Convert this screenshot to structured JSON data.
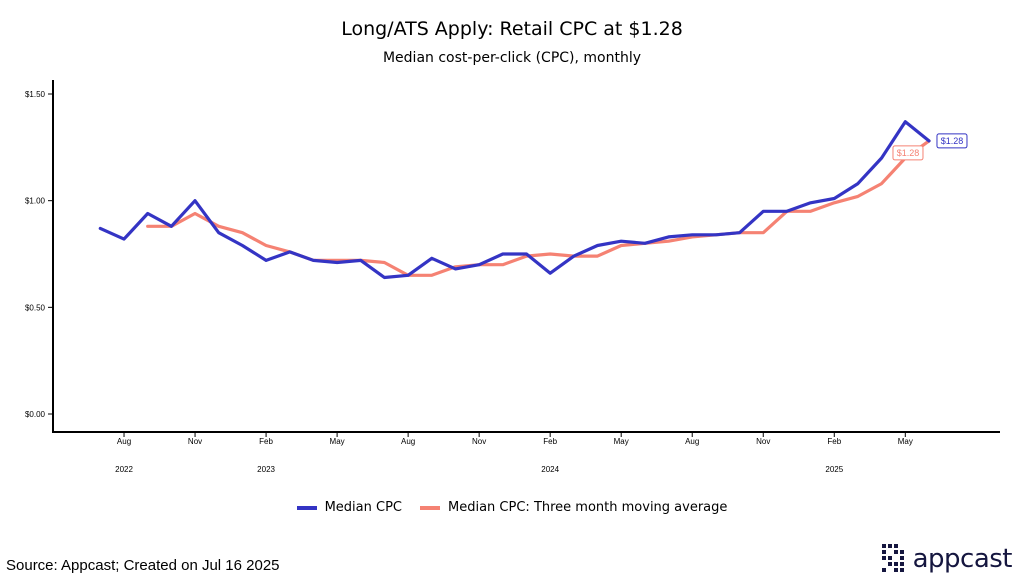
{
  "header": {
    "title": "Long/ATS Apply: Retail CPC at $1.28",
    "subtitle": "Median cost-per-click (CPC), monthly"
  },
  "footer": {
    "source": "Source: Appcast; Created on Jul 16 2025",
    "logo_text": "appcast"
  },
  "colors": {
    "median": "#3434c4",
    "moving_avg": "#f58273",
    "logo": "#15163f"
  },
  "chart_data": {
    "type": "line",
    "x": [
      "2022-07",
      "2022-08",
      "2022-09",
      "2022-10",
      "2022-11",
      "2022-12",
      "2023-01",
      "2023-02",
      "2023-03",
      "2023-04",
      "2023-05",
      "2023-06",
      "2023-07",
      "2023-08",
      "2023-09",
      "2023-10",
      "2023-11",
      "2023-12",
      "2024-01",
      "2024-02",
      "2024-03",
      "2024-04",
      "2024-05",
      "2024-06",
      "2024-07",
      "2024-08",
      "2024-09",
      "2024-10",
      "2024-11",
      "2024-12",
      "2025-01",
      "2025-02",
      "2025-03",
      "2025-04",
      "2025-05",
      "2025-06"
    ],
    "series": [
      {
        "name": "Median CPC",
        "values": [
          0.87,
          0.82,
          0.94,
          0.88,
          1.0,
          0.85,
          0.79,
          0.72,
          0.76,
          0.72,
          0.71,
          0.72,
          0.64,
          0.65,
          0.73,
          0.68,
          0.7,
          0.75,
          0.75,
          0.66,
          0.74,
          0.79,
          0.81,
          0.8,
          0.83,
          0.84,
          0.84,
          0.85,
          0.95,
          0.95,
          0.99,
          1.01,
          1.08,
          1.2,
          1.37,
          1.28
        ],
        "end_label": "$1.28"
      },
      {
        "name": "Median CPC: Three month moving average",
        "values": [
          null,
          null,
          0.88,
          0.88,
          0.94,
          0.88,
          0.85,
          0.79,
          0.76,
          0.72,
          0.72,
          0.72,
          0.71,
          0.65,
          0.65,
          0.69,
          0.7,
          0.7,
          0.74,
          0.75,
          0.74,
          0.74,
          0.79,
          0.8,
          0.81,
          0.83,
          0.84,
          0.85,
          0.85,
          0.95,
          0.95,
          0.99,
          1.02,
          1.08,
          1.2,
          1.28
        ],
        "end_label": "$1.28"
      }
    ],
    "xlim": [
      "2022-05",
      "2025-09"
    ],
    "ylim": [
      0,
      1.5
    ],
    "y_ticks": [
      {
        "value": 0,
        "label": "$0.00"
      },
      {
        "value": 0.5,
        "label": "$0.50"
      },
      {
        "value": 1.0,
        "label": "$1.00"
      },
      {
        "value": 1.5,
        "label": "$1.50"
      }
    ],
    "x_ticks": [
      {
        "date": "2022-08",
        "label": "Aug"
      },
      {
        "date": "2022-11",
        "label": "Nov"
      },
      {
        "date": "2023-02",
        "label": "Feb"
      },
      {
        "date": "2023-05",
        "label": "May"
      },
      {
        "date": "2023-08",
        "label": "Aug"
      },
      {
        "date": "2023-11",
        "label": "Nov"
      },
      {
        "date": "2024-02",
        "label": "Feb"
      },
      {
        "date": "2024-05",
        "label": "May"
      },
      {
        "date": "2024-08",
        "label": "Aug"
      },
      {
        "date": "2024-11",
        "label": "Nov"
      },
      {
        "date": "2025-02",
        "label": "Feb"
      },
      {
        "date": "2025-05",
        "label": "May"
      }
    ],
    "year_labels": [
      {
        "date": "2022-08",
        "label": "2022"
      },
      {
        "date": "2023-02",
        "label": "2023"
      },
      {
        "date": "2024-02",
        "label": "2024"
      },
      {
        "date": "2025-02",
        "label": "2025"
      }
    ],
    "grid": false,
    "legend_position": "bottom"
  }
}
